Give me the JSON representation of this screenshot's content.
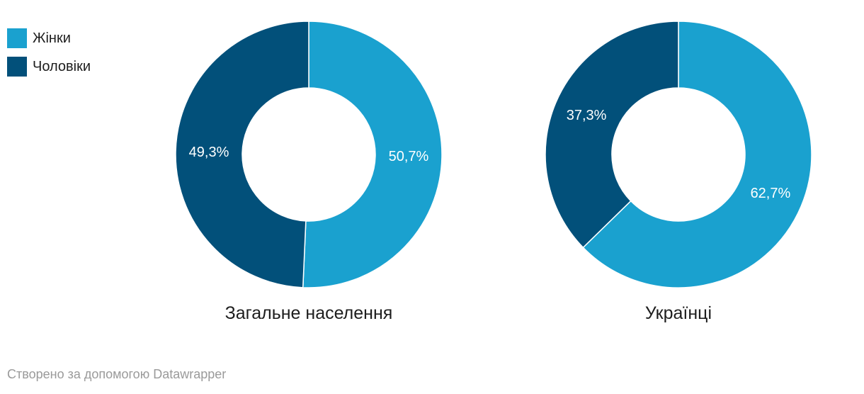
{
  "legend": {
    "items": [
      {
        "label": "Жінки",
        "color": "#1aa1cf"
      },
      {
        "label": "Чоловіки",
        "color": "#02507a"
      }
    ]
  },
  "chart_data": [
    {
      "type": "pie",
      "variant": "donut",
      "title": "Загальне населення",
      "series": [
        {
          "name": "Жінки",
          "value": 50.7,
          "label": "50,7%"
        },
        {
          "name": "Чоловіки",
          "value": 49.3,
          "label": "49,3%"
        }
      ]
    },
    {
      "type": "pie",
      "variant": "donut",
      "title": "Українці",
      "series": [
        {
          "name": "Жінки",
          "value": 62.7,
          "label": "62,7%"
        },
        {
          "name": "Чоловіки",
          "value": 37.3,
          "label": "37,3%"
        }
      ]
    }
  ],
  "credit": "Створено за допомогою Datawrapper"
}
